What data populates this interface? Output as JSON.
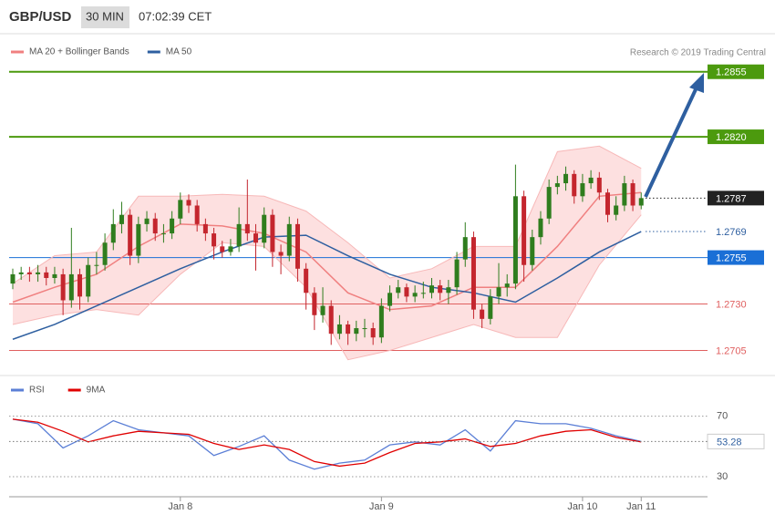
{
  "header": {
    "symbol": "GBP/USD",
    "timeframe": "30 MIN",
    "time": "07:02:39 CET"
  },
  "chart_data": [
    {
      "type": "candlestick",
      "copyright": "Research © 2019 Trading Central",
      "categories": [
        null,
        null,
        null,
        null,
        null,
        null,
        null,
        null,
        null,
        null,
        null,
        null,
        null,
        null,
        null,
        null,
        null,
        null,
        null,
        null,
        "Jan 8",
        null,
        null,
        null,
        null,
        null,
        null,
        null,
        null,
        null,
        null,
        null,
        null,
        null,
        null,
        null,
        null,
        null,
        null,
        null,
        null,
        null,
        null,
        null,
        "Jan 9",
        null,
        null,
        null,
        null,
        null,
        null,
        null,
        null,
        null,
        null,
        null,
        null,
        null,
        null,
        null,
        null,
        null,
        null,
        null,
        null,
        null,
        null,
        null,
        "Jan 10",
        null,
        null,
        null,
        null,
        null,
        null,
        "Jan 11"
      ],
      "open": [
        1.2741,
        1.2746,
        1.2747,
        1.2746,
        1.2747,
        1.2744,
        1.2746,
        1.2732,
        1.2746,
        1.2734,
        1.2751,
        1.2751,
        1.2763,
        1.2773,
        1.2778,
        1.2756,
        1.2773,
        1.2776,
        1.2768,
        1.2768,
        1.2776,
        1.2786,
        1.2783,
        1.2773,
        1.2768,
        1.2761,
        1.2758,
        1.2761,
        1.2773,
        1.2768,
        1.2763,
        1.2778,
        1.2758,
        1.2756,
        1.2773,
        1.2749,
        1.2736,
        1.2724,
        1.2729,
        1.2714,
        1.2719,
        1.2714,
        1.2717,
        1.2717,
        1.2712,
        1.2729,
        1.2736,
        1.2739,
        1.2734,
        1.2736,
        1.2736,
        1.274,
        1.2736,
        1.2739,
        1.2754,
        1.2766,
        1.2727,
        1.2722,
        1.2734,
        1.2739,
        1.2741,
        1.2788,
        1.2751,
        1.2766,
        1.2776,
        1.2793,
        1.2795,
        1.28,
        1.2788,
        1.2795,
        1.2798,
        1.279,
        1.2778,
        1.2783,
        1.2795,
        1.2783
      ],
      "high": [
        1.2749,
        1.275,
        1.275,
        1.2751,
        1.275,
        1.275,
        1.2749,
        1.2771,
        1.2749,
        1.2755,
        1.2758,
        1.2768,
        1.2781,
        1.2785,
        1.2781,
        1.2777,
        1.278,
        1.2779,
        1.2773,
        1.278,
        1.279,
        1.2789,
        1.2786,
        1.2776,
        1.2771,
        1.2764,
        1.2765,
        1.2782,
        1.2797,
        1.2773,
        1.2782,
        1.2781,
        1.2762,
        1.2777,
        1.2776,
        1.2752,
        1.2739,
        1.2739,
        1.2732,
        1.2724,
        1.2721,
        1.2721,
        1.2722,
        1.272,
        1.2733,
        1.274,
        1.2743,
        1.2741,
        1.274,
        1.2742,
        1.2744,
        1.2743,
        1.2743,
        1.2758,
        1.2774,
        1.2769,
        1.273,
        1.2738,
        1.2752,
        1.2746,
        1.2805,
        1.2791,
        1.277,
        1.278,
        1.2797,
        1.2799,
        1.2804,
        1.2802,
        1.28,
        1.2802,
        1.2801,
        1.2792,
        1.2788,
        1.2799,
        1.2797,
        1.279
      ],
      "low": [
        1.2738,
        1.2743,
        1.2742,
        1.2742,
        1.274,
        1.2741,
        1.2724,
        1.2728,
        1.2727,
        1.2731,
        1.2746,
        1.2748,
        1.2759,
        1.2768,
        1.2751,
        1.2752,
        1.2769,
        1.2764,
        1.2763,
        1.2765,
        1.2773,
        1.2779,
        1.2769,
        1.2764,
        1.2754,
        1.2755,
        1.2756,
        1.2758,
        1.2764,
        1.2748,
        1.276,
        1.275,
        1.2746,
        1.2753,
        1.2742,
        1.2727,
        1.2716,
        1.272,
        1.2708,
        1.2711,
        1.2708,
        1.271,
        1.2712,
        1.2708,
        1.2709,
        1.2726,
        1.2733,
        1.2731,
        1.2731,
        1.2733,
        1.2733,
        1.2732,
        1.273,
        1.2735,
        1.275,
        1.2722,
        1.2717,
        1.2719,
        1.273,
        1.2734,
        1.2738,
        1.2742,
        1.2748,
        1.2762,
        1.2773,
        1.2789,
        1.2791,
        1.2784,
        1.2785,
        1.2792,
        1.2786,
        1.2774,
        1.2775,
        1.278,
        1.278,
        1.2781
      ],
      "close": [
        1.2746,
        1.2747,
        1.2746,
        1.2747,
        1.2744,
        1.2746,
        1.2732,
        1.2746,
        1.2734,
        1.2751,
        1.2751,
        1.2763,
        1.2773,
        1.2778,
        1.2756,
        1.2773,
        1.2776,
        1.2768,
        1.2768,
        1.2776,
        1.2786,
        1.2783,
        1.2773,
        1.2768,
        1.2761,
        1.2758,
        1.2761,
        1.2773,
        1.2768,
        1.2763,
        1.2778,
        1.2758,
        1.2756,
        1.2773,
        1.2749,
        1.2736,
        1.2724,
        1.2729,
        1.2714,
        1.2719,
        1.2714,
        1.2717,
        1.2717,
        1.2712,
        1.2729,
        1.2736,
        1.2739,
        1.2734,
        1.2736,
        1.2736,
        1.274,
        1.2736,
        1.2739,
        1.2754,
        1.2766,
        1.2727,
        1.2722,
        1.2734,
        1.2739,
        1.2741,
        1.2788,
        1.2751,
        1.2766,
        1.2776,
        1.2793,
        1.2795,
        1.28,
        1.2788,
        1.2795,
        1.2798,
        1.279,
        1.2778,
        1.2783,
        1.2795,
        1.2783,
        1.2787
      ],
      "up_color": "#2f7d1e",
      "down_color": "#c4262e",
      "ylim": [
        1.2692,
        1.2874
      ],
      "overlays": {
        "x": [
          0,
          5,
          10,
          15,
          20,
          25,
          30,
          35,
          40,
          45,
          50,
          55,
          60,
          65,
          70,
          75
        ],
        "series": [
          {
            "name": "MA 20 + Bollinger Bands",
            "color": "#f08080",
            "band_color": "#fde0e0",
            "values": [
              1.2731,
              1.2739,
              1.2746,
              1.2761,
              1.2773,
              1.2772,
              1.2768,
              1.2758,
              1.2736,
              1.2727,
              1.2729,
              1.2739,
              1.2739,
              1.2761,
              1.2788,
              1.279
            ],
            "upper": [
              1.2741,
              1.2756,
              1.2758,
              1.2788,
              1.2788,
              1.2789,
              1.2788,
              1.278,
              1.2763,
              1.2744,
              1.2749,
              1.2761,
              1.2761,
              1.2812,
              1.2815,
              1.2803
            ],
            "lower": [
              1.2719,
              1.2724,
              1.2727,
              1.2724,
              1.2746,
              1.2763,
              1.2761,
              1.2739,
              1.27,
              1.2705,
              1.2712,
              1.2719,
              1.2712,
              1.2712,
              1.2751,
              1.2778
            ]
          },
          {
            "name": "MA 50",
            "color": "#2e5fa0",
            "values": [
              1.2711,
              1.2719,
              1.2729,
              1.2739,
              1.2749,
              1.2758,
              1.2766,
              1.2767,
              1.2756,
              1.2746,
              1.2739,
              1.2736,
              1.2731,
              1.2744,
              1.2758,
              1.2769
            ]
          }
        ]
      },
      "levels": [
        {
          "value": 1.2855,
          "color": "#4c9a0e",
          "line": "solid",
          "box": true
        },
        {
          "value": 1.282,
          "label": "1.2820",
          "color": "#4c9a0e",
          "line": "solid",
          "box": true
        },
        {
          "value": 1.2787,
          "color": "#222222",
          "line": "dotted",
          "box": true
        },
        {
          "value": 1.2769,
          "color": "#2e5fa0",
          "line": "dotted",
          "box": false
        },
        {
          "value": 1.2755,
          "color": "#1a6fd6",
          "line": "solid",
          "box": true
        },
        {
          "value": 1.273,
          "label": "1.2730",
          "color": "#e06060",
          "line": "solid",
          "box": false
        },
        {
          "value": 1.2705,
          "color": "#e06060",
          "line": "solid",
          "box": false
        }
      ]
    },
    {
      "type": "line",
      "x": [
        0,
        3,
        6,
        9,
        12,
        15,
        18,
        21,
        24,
        27,
        30,
        33,
        36,
        39,
        42,
        45,
        48,
        51,
        54,
        57,
        60,
        63,
        66,
        69,
        72,
        75
      ],
      "series": [
        {
          "name": "RSI",
          "color": "#5b7fd6",
          "values": [
            68,
            65,
            49,
            57,
            67,
            61,
            59,
            57,
            44,
            50,
            57,
            41,
            35,
            39,
            41,
            51,
            53,
            51,
            61,
            47,
            67,
            65,
            65,
            62,
            57,
            53.28
          ]
        },
        {
          "name": "9MA",
          "color": "#e00000",
          "values": [
            68,
            66,
            60,
            53,
            57,
            60,
            59,
            58,
            52,
            48,
            51,
            48,
            40,
            37,
            39,
            46,
            52,
            53,
            55,
            50,
            52,
            57,
            60,
            61,
            56,
            53
          ]
        }
      ],
      "ylim": [
        18,
        89
      ],
      "yticks": [
        70,
        30
      ],
      "grid": true
    }
  ]
}
